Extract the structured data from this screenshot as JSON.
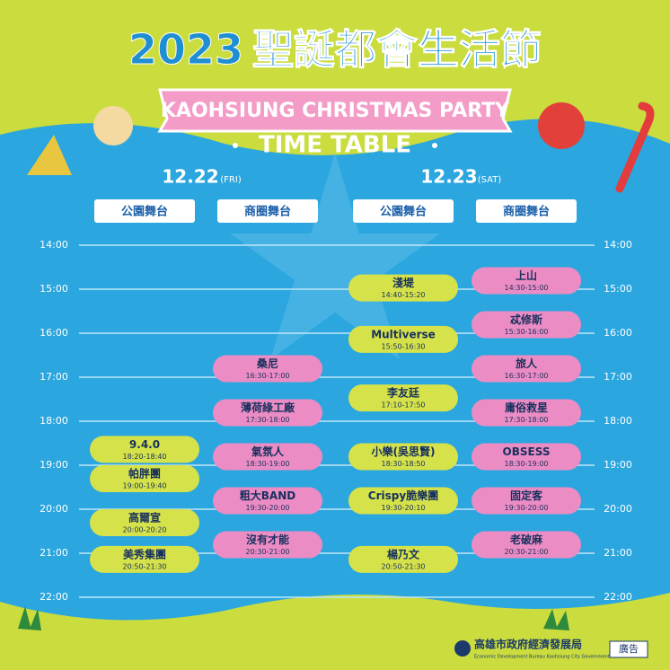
{
  "header": {
    "year": "2023",
    "title": "聖誕都會生活節",
    "subtitle": "KAOHSIUNG CHRISTMAS PARTY",
    "timetable": "TIME TABLE"
  },
  "times": [
    "14:00",
    "15:00",
    "16:00",
    "17:00",
    "18:00",
    "19:00",
    "20:00",
    "21:00",
    "22:00"
  ],
  "days": [
    {
      "date": "12.22",
      "weekday": "(FRI)",
      "stages": [
        {
          "name": "公園舞台",
          "color": "#d6e24a",
          "events": [
            {
              "name": "9.4.0",
              "time": "18:20-18:40"
            },
            {
              "name": "帕胖團",
              "time": "19:00-19:40"
            },
            {
              "name": "高爾宣",
              "time": "20:00-20:20"
            },
            {
              "name": "美秀集團",
              "time": "20:50-21:30"
            }
          ]
        },
        {
          "name": "商圈舞台",
          "color": "#ec8cc4",
          "events": [
            {
              "name": "桑尼",
              "time": "16:30-17:00"
            },
            {
              "name": "薄荷綠工廠",
              "time": "17:30-18:00"
            },
            {
              "name": "氣氛人",
              "time": "18:30-19:00"
            },
            {
              "name": "粗大BAND",
              "time": "19:30-20:00"
            },
            {
              "name": "沒有才能",
              "time": "20:30-21:00"
            }
          ]
        }
      ]
    },
    {
      "date": "12.23",
      "weekday": "(SAT)",
      "stages": [
        {
          "name": "公園舞台",
          "color": "#d6e24a",
          "events": [
            {
              "name": "淺堤",
              "time": "14:40-15:20"
            },
            {
              "name": "Multiverse",
              "time": "15:50-16:30"
            },
            {
              "name": "李友廷",
              "time": "17:10-17:50"
            },
            {
              "name": "小樂(吳思賢)",
              "time": "18:30-18:50"
            },
            {
              "name": "Crispy脆樂團",
              "time": "19:30-20:10"
            },
            {
              "name": "楊乃文",
              "time": "20:50-21:30"
            }
          ]
        },
        {
          "name": "商圈舞台",
          "color": "#ec8cc4",
          "events": [
            {
              "name": "上山",
              "time": "14:30-15:00"
            },
            {
              "name": "忒修斯",
              "time": "15:30-16:00"
            },
            {
              "name": "旅人",
              "time": "16:30-17:00"
            },
            {
              "name": "庸俗救星",
              "time": "17:30-18:00"
            },
            {
              "name": "OBSESS",
              "time": "18:30-19:00"
            },
            {
              "name": "固定客",
              "time": "19:30-20:00"
            },
            {
              "name": "老破麻",
              "time": "20:30-21:00"
            }
          ]
        }
      ]
    }
  ],
  "footer": {
    "org": "高雄市政府經濟發展局",
    "org_en": "Economic Development Bureau Kaohsiung City Government",
    "ad": "廣告"
  }
}
